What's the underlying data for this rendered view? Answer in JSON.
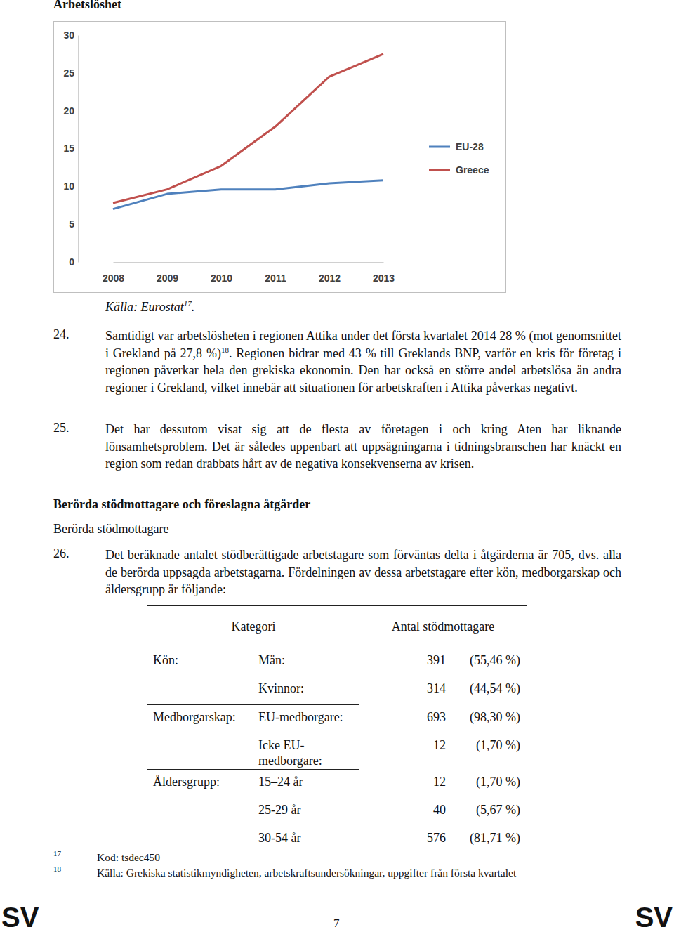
{
  "heading": "Arbetslöshet",
  "chart_data": {
    "type": "line",
    "categories": [
      "2008",
      "2009",
      "2010",
      "2011",
      "2012",
      "2013"
    ],
    "series": [
      {
        "name": "EU-28",
        "color": "#4f81bd",
        "values": [
          7.0,
          9.0,
          9.6,
          9.6,
          10.4,
          10.8
        ]
      },
      {
        "name": "Greece",
        "color": "#c0504d",
        "values": [
          7.8,
          9.6,
          12.7,
          17.9,
          24.5,
          27.5
        ]
      }
    ],
    "ylim": [
      0,
      30
    ],
    "yticks": [
      0,
      5,
      10,
      15,
      20,
      25,
      30
    ],
    "grid": false,
    "legend": "right"
  },
  "caption": {
    "text": "Källa: Eurostat",
    "note": "17",
    "end": "."
  },
  "paragraphs": [
    {
      "number": "24.",
      "segments": [
        {
          "text": "Samtidigt var arbetslösheten i regionen Attika under det första kvartalet 2014 28 % (mot genomsnittet i Grekland på 27,8 %)"
        },
        {
          "sup": "18"
        },
        {
          "text": ". Regionen bidrar med 43 % till Greklands BNP, varför en kris för företag i regionen påverkar hela den grekiska ekonomin. Den har också en större andel arbetslösa än andra regioner i Grekland, vilket innebär att situationen för arbetskraften i Attika påverkas negativt."
        }
      ]
    },
    {
      "number": "25.",
      "segments": [
        {
          "text": "Det har dessutom visat sig att de flesta av företagen i och kring Aten har liknande lönsamhetsproblem. Det är således uppenbart att uppsägningarna i tidningsbranschen har knäckt en region som redan drabbats hårt av de negativa konsekvenserna av krisen."
        }
      ]
    }
  ],
  "section": {
    "heading": "Berörda stödmottagare och föreslagna åtgärder",
    "subheading": "Berörda stödmottagare",
    "paragraphs": [
      {
        "number": "26.",
        "segments": [
          {
            "text": "Det beräknade antalet stödberättigade arbetstagare som förväntas delta i åtgärderna är 705, dvs. alla de berörda uppsagda arbetstagarna. Fördelningen av dessa arbetstagare efter kön, medborgarskap och åldersgrupp är följande:"
          }
        ]
      }
    ]
  },
  "table": {
    "header": [
      "Kategori",
      "Antal stödmottagare"
    ],
    "groups": [
      {
        "category": "Kön:",
        "rows": [
          {
            "label": "Män:",
            "count": 391,
            "share": "(55,46 %)"
          },
          {
            "label": "Kvinnor:",
            "count": 314,
            "share": "(44,54 %)"
          }
        ]
      },
      {
        "category": "Medborgarskap:",
        "rows": [
          {
            "label": "EU-medborgare:",
            "count": 693,
            "share": "(98,30 %)"
          },
          {
            "label": "Icke EU-medborgare:",
            "count": 12,
            "share": "(1,70 %)"
          }
        ]
      },
      {
        "category": "Åldersgrupp:",
        "rows": [
          {
            "label": "15–24 år",
            "count": 12,
            "share": "(1,70 %)"
          },
          {
            "label": "25-29 år",
            "count": 40,
            "share": "(5,67 %)"
          },
          {
            "label": "30-54 år",
            "count": 576,
            "share": "(81,71 %)"
          }
        ]
      }
    ]
  },
  "footnotes": [
    {
      "number": "17",
      "text": "Kod: tsdec450"
    },
    {
      "number": "18",
      "text": "Källa: Grekiska statistikmyndigheten, arbetskraftsundersökningar, uppgifter från första kvartalet"
    }
  ],
  "footer": {
    "language": "SV",
    "page": "7"
  }
}
